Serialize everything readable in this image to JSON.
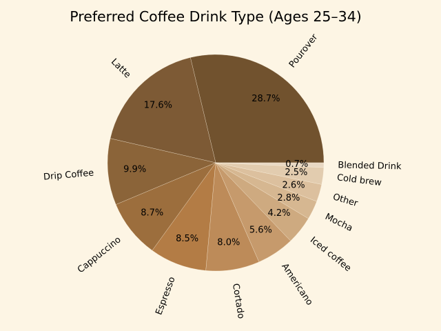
{
  "chart_data": {
    "type": "pie",
    "title": "Preferred Coffee Drink Type (Ages 25–34)",
    "start_angle_deg": 0,
    "direction": "counterclockwise",
    "categories": [
      "Pourover",
      "Latte",
      "Drip Coffee",
      "Cappuccino",
      "Espresso",
      "Cortado",
      "Americano",
      "Iced coffee",
      "Mocha",
      "Other",
      "Cold brew",
      "Blended Drink"
    ],
    "values": [
      28.7,
      17.6,
      9.9,
      8.7,
      8.5,
      8.0,
      5.6,
      4.2,
      2.8,
      2.6,
      2.5,
      0.7
    ],
    "value_labels": [
      "28.7%",
      "17.6%",
      "9.9%",
      "8.7%",
      "8.5%",
      "8.0%",
      "5.6%",
      "4.2%",
      "2.8%",
      "2.6%",
      "2.5%",
      "0.7%"
    ],
    "colors": [
      "#71522e",
      "#7d5a35",
      "#8b6439",
      "#9c6e3d",
      "#b37c45",
      "#bd8b59",
      "#c69a6c",
      "#ceaa80",
      "#d6b791",
      "#dcc09e",
      "#e2ccaf",
      "#e8d8c3"
    ]
  }
}
